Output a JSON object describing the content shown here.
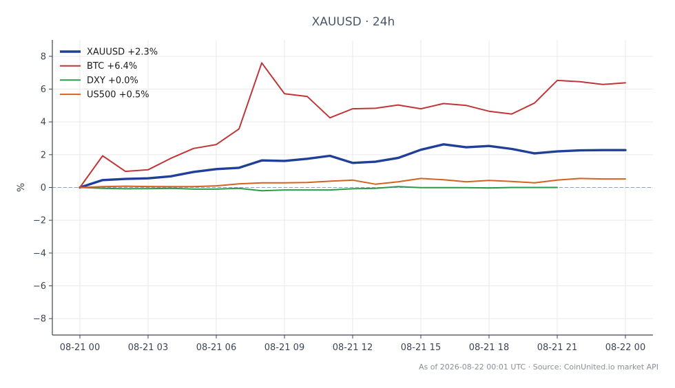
{
  "chart_data": {
    "type": "line",
    "title": "XAUUSD · 24h",
    "xlabel": "",
    "ylabel": "%",
    "x_ticks": [
      "08-21 00",
      "08-21 03",
      "08-21 06",
      "08-21 09",
      "08-21 12",
      "08-21 15",
      "08-21 18",
      "08-21 21",
      "08-22 00"
    ],
    "x_hours": [
      0,
      3,
      6,
      9,
      12,
      15,
      18,
      21,
      24
    ],
    "ylim": [
      -9,
      9
    ],
    "y_ticks": [
      -8,
      -6,
      -4,
      -2,
      0,
      2,
      4,
      6,
      8
    ],
    "grid": true,
    "zero_line": true,
    "legend_position": "top-left",
    "series": [
      {
        "name": "XAUUSD +2.3%",
        "color": "#1f3f99",
        "emphasis": true,
        "x": [
          0,
          1,
          2,
          3,
          4,
          5,
          6,
          7,
          8,
          9,
          10,
          11,
          12,
          13,
          14,
          15,
          16,
          17,
          18,
          19,
          20,
          21,
          22,
          23,
          24
        ],
        "values": [
          0.0,
          0.45,
          0.52,
          0.56,
          0.68,
          0.95,
          1.12,
          1.2,
          1.65,
          1.62,
          1.75,
          1.93,
          1.5,
          1.57,
          1.8,
          2.3,
          2.63,
          2.45,
          2.53,
          2.35,
          2.08,
          2.2,
          2.26,
          2.28,
          2.28
        ]
      },
      {
        "name": "BTC +6.4%",
        "color": "#c03535",
        "x": [
          0,
          1,
          2,
          3,
          4,
          5,
          6,
          7,
          8,
          9,
          10,
          11,
          12,
          13,
          14,
          15,
          16,
          17,
          18,
          19,
          20,
          21,
          22,
          23,
          24
        ],
        "values": [
          0.0,
          1.93,
          0.98,
          1.08,
          1.78,
          2.38,
          2.62,
          3.57,
          7.6,
          5.72,
          5.55,
          4.25,
          4.8,
          4.83,
          5.03,
          4.8,
          5.12,
          5.0,
          4.65,
          4.48,
          5.15,
          6.53,
          6.45,
          6.28,
          6.38
        ]
      },
      {
        "name": "DXY +0.0%",
        "color": "#2a9a4a",
        "x": [
          0,
          1,
          2,
          3,
          4,
          5,
          6,
          7,
          8,
          9,
          10,
          11,
          12,
          13,
          14,
          15,
          16,
          17,
          18,
          19,
          20,
          21
        ],
        "values": [
          0.0,
          -0.05,
          -0.08,
          -0.07,
          -0.05,
          -0.1,
          -0.1,
          -0.05,
          -0.2,
          -0.15,
          -0.15,
          -0.15,
          -0.08,
          -0.05,
          0.05,
          -0.01,
          -0.01,
          -0.01,
          -0.03,
          0.0,
          0.0,
          0.0
        ]
      },
      {
        "name": "US500 +0.5%",
        "color": "#d5601f",
        "x": [
          0,
          1,
          2,
          3,
          4,
          5,
          6,
          7,
          8,
          9,
          10,
          11,
          12,
          13,
          14,
          15,
          16,
          17,
          18,
          19,
          20,
          21,
          22,
          23,
          24
        ],
        "values": [
          0.0,
          0.05,
          0.08,
          0.06,
          0.05,
          0.05,
          0.1,
          0.22,
          0.28,
          0.28,
          0.3,
          0.38,
          0.45,
          0.2,
          0.35,
          0.55,
          0.47,
          0.35,
          0.43,
          0.37,
          0.28,
          0.45,
          0.55,
          0.52,
          0.52
        ]
      }
    ],
    "footer": "As of 2026-08-22 00:01 UTC · Source: CoinUnited.io market API"
  }
}
